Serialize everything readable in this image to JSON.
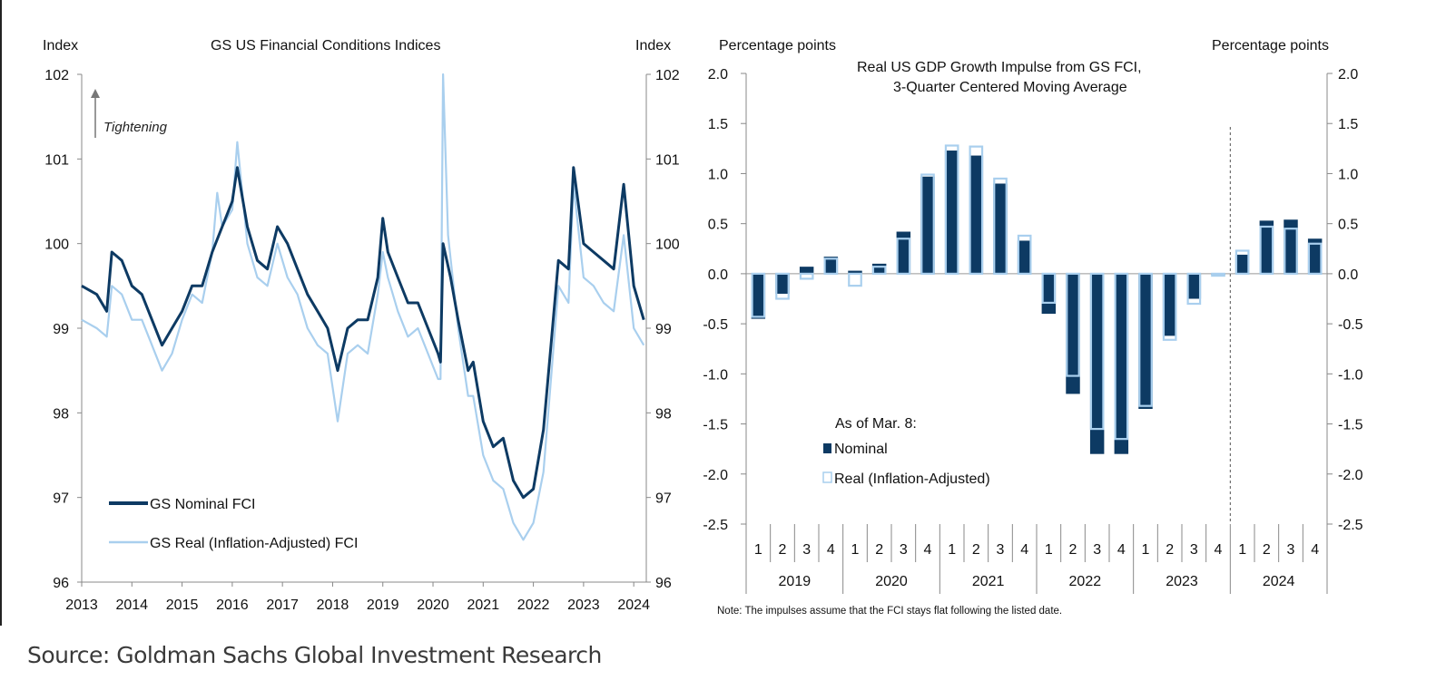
{
  "source": "Source: Goldman Sachs Global Investment Research",
  "chart_data": [
    {
      "type": "line",
      "title": "GS US Financial Conditions Indices",
      "ylabel_left": "Index",
      "ylabel_right": "Index",
      "annotation": "Tightening",
      "ylim": [
        96,
        102
      ],
      "yticks": [
        "96",
        "97",
        "98",
        "99",
        "100",
        "101",
        "102"
      ],
      "xlim": [
        2013,
        2024.25
      ],
      "xticks": [
        "2013",
        "2014",
        "2015",
        "2016",
        "2017",
        "2018",
        "2019",
        "2020",
        "2021",
        "2022",
        "2023",
        "2024"
      ],
      "legend_position": "bottom-left",
      "grid": false,
      "colors": {
        "nominal": "#0d3a63",
        "real": "#a9cfee"
      },
      "series": [
        {
          "name": "GS Nominal FCI",
          "x": [
            2013.0,
            2013.3,
            2013.5,
            2013.6,
            2013.8,
            2014.0,
            2014.2,
            2014.4,
            2014.6,
            2014.8,
            2015.0,
            2015.2,
            2015.4,
            2015.6,
            2015.8,
            2016.0,
            2016.1,
            2016.3,
            2016.5,
            2016.7,
            2016.9,
            2017.1,
            2017.3,
            2017.5,
            2017.7,
            2017.9,
            2018.1,
            2018.3,
            2018.5,
            2018.7,
            2018.9,
            2019.0,
            2019.1,
            2019.3,
            2019.5,
            2019.7,
            2019.9,
            2020.1,
            2020.15,
            2020.2,
            2020.35,
            2020.5,
            2020.7,
            2020.8,
            2021.0,
            2021.2,
            2021.4,
            2021.6,
            2021.8,
            2022.0,
            2022.2,
            2022.35,
            2022.5,
            2022.7,
            2022.8,
            2023.0,
            2023.2,
            2023.4,
            2023.6,
            2023.8,
            2024.0,
            2024.2
          ],
          "y": [
            99.5,
            99.4,
            99.2,
            99.9,
            99.8,
            99.5,
            99.4,
            99.1,
            98.8,
            99.0,
            99.2,
            99.5,
            99.5,
            99.9,
            100.2,
            100.5,
            100.9,
            100.2,
            99.8,
            99.7,
            100.2,
            100.0,
            99.7,
            99.4,
            99.2,
            99.0,
            98.5,
            99.0,
            99.1,
            99.1,
            99.6,
            100.3,
            99.9,
            99.6,
            99.3,
            99.3,
            99.0,
            98.7,
            98.6,
            100.0,
            99.6,
            99.1,
            98.5,
            98.6,
            97.9,
            97.6,
            97.7,
            97.2,
            97.0,
            97.1,
            97.8,
            98.8,
            99.8,
            99.7,
            100.9,
            100.0,
            99.9,
            99.8,
            99.7,
            100.7,
            99.5,
            99.1
          ]
        },
        {
          "name": "GS Real (Inflation-Adjusted) FCI",
          "x": [
            2013.0,
            2013.3,
            2013.5,
            2013.6,
            2013.8,
            2014.0,
            2014.2,
            2014.4,
            2014.6,
            2014.8,
            2015.0,
            2015.2,
            2015.4,
            2015.6,
            2015.7,
            2015.8,
            2016.0,
            2016.1,
            2016.3,
            2016.5,
            2016.7,
            2016.9,
            2017.1,
            2017.3,
            2017.5,
            2017.7,
            2017.9,
            2018.1,
            2018.3,
            2018.5,
            2018.7,
            2018.9,
            2019.0,
            2019.1,
            2019.3,
            2019.5,
            2019.7,
            2019.9,
            2020.1,
            2020.15,
            2020.2,
            2020.3,
            2020.5,
            2020.7,
            2020.8,
            2021.0,
            2021.2,
            2021.4,
            2021.6,
            2021.8,
            2022.0,
            2022.2,
            2022.35,
            2022.5,
            2022.7,
            2022.8,
            2023.0,
            2023.2,
            2023.4,
            2023.6,
            2023.8,
            2024.0,
            2024.2
          ],
          "y": [
            99.1,
            99.0,
            98.9,
            99.5,
            99.4,
            99.1,
            99.1,
            98.8,
            98.5,
            98.7,
            99.1,
            99.4,
            99.3,
            99.9,
            100.6,
            100.2,
            100.4,
            101.2,
            100.0,
            99.6,
            99.5,
            100.0,
            99.6,
            99.4,
            99.0,
            98.8,
            98.7,
            97.9,
            98.7,
            98.8,
            98.7,
            99.4,
            99.9,
            99.6,
            99.2,
            98.9,
            99.0,
            98.7,
            98.4,
            98.4,
            102.0,
            100.1,
            99.0,
            98.2,
            98.2,
            97.5,
            97.2,
            97.1,
            96.7,
            96.5,
            96.7,
            97.3,
            98.4,
            99.5,
            99.3,
            100.7,
            99.6,
            99.5,
            99.3,
            99.2,
            100.1,
            99.0,
            98.8
          ]
        }
      ]
    },
    {
      "type": "bar",
      "title": "Real US GDP Growth Impulse from GS FCI,",
      "subtitle": "3-Quarter Centered Moving Average",
      "ylabel_left": "Percentage points",
      "ylabel_right": "Percentage points",
      "ylim": [
        -2.5,
        2.0
      ],
      "yticks": [
        "-2.5",
        "-2.0",
        "-1.5",
        "-1.0",
        "-0.5",
        "0.0",
        "0.5",
        "1.0",
        "1.5",
        "2.0"
      ],
      "years": [
        "2019",
        "2020",
        "2021",
        "2022",
        "2023",
        "2024"
      ],
      "quarters": [
        "1",
        "2",
        "3",
        "4"
      ],
      "legend_title": "As of Mar. 8:",
      "legend_position": "bottom-left",
      "note": "Note: The impulses assume that the FCI stays flat following the listed date.",
      "forecast_divider_after": "2023 Q4",
      "colors": {
        "nominal": "#0d3a63",
        "real": "#a9cfee"
      },
      "series": [
        {
          "name": "Nominal",
          "values": [
            -0.45,
            -0.2,
            0.07,
            0.17,
            0.03,
            0.1,
            0.42,
            0.97,
            1.23,
            1.18,
            0.9,
            0.33,
            -0.4,
            -1.2,
            -1.8,
            -1.8,
            -1.35,
            -0.62,
            -0.25,
            -0.01,
            0.19,
            0.53,
            0.54,
            0.35
          ]
        },
        {
          "name": "Real (Inflation-Adjusted)",
          "values": [
            -0.43,
            -0.25,
            -0.05,
            0.15,
            -0.12,
            0.07,
            0.35,
            0.99,
            1.28,
            1.27,
            0.95,
            0.38,
            -0.29,
            -1.02,
            -1.55,
            -1.65,
            -1.32,
            -0.66,
            -0.3,
            -0.02,
            0.23,
            0.47,
            0.45,
            0.3
          ]
        }
      ]
    }
  ]
}
